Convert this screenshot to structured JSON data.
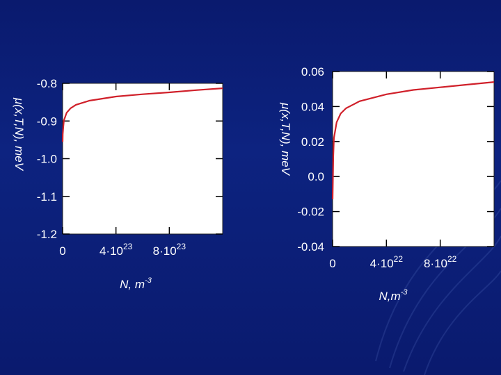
{
  "chart_data": [
    {
      "type": "line",
      "xlabel": "N, m",
      "xlabel_sup": "-3",
      "ylabel": "μ(x,T,N), meV",
      "ylim": [
        -1.2,
        -0.8
      ],
      "xlim": [
        0,
        1.2e+24
      ],
      "y_ticks": [
        {
          "value": -0.8,
          "label": "-0.8"
        },
        {
          "value": -0.9,
          "label": "-0.9"
        },
        {
          "value": -1.0,
          "label": "-1.0"
        },
        {
          "value": -1.1,
          "label": "-1.1"
        },
        {
          "value": -1.2,
          "label": "-1.2"
        }
      ],
      "x_ticks": [
        {
          "value": 0,
          "base": "0",
          "exp": ""
        },
        {
          "value": 4e+23,
          "base": "4·10",
          "exp": "23"
        },
        {
          "value": 8e+23,
          "base": "8·10",
          "exp": "23"
        }
      ],
      "series": [
        {
          "color": "#d0202a",
          "x": [
            0,
            1e+21,
            5e+21,
            1e+22,
            3e+22,
            6e+22,
            1e+23,
            2e+23,
            4e+23,
            6e+23,
            8e+23,
            1e+24,
            1.2e+24
          ],
          "y": [
            -0.955,
            -0.935,
            -0.915,
            -0.898,
            -0.878,
            -0.866,
            -0.857,
            -0.846,
            -0.835,
            -0.829,
            -0.824,
            -0.818,
            -0.813
          ]
        }
      ]
    },
    {
      "type": "line",
      "xlabel": "N,m",
      "xlabel_sup": "-3",
      "ylabel": "μ(x,T,N), meV",
      "ylim": [
        -0.04,
        0.06
      ],
      "xlim": [
        0,
        1.2e+23
      ],
      "y_ticks": [
        {
          "value": 0.06,
          "label": "0.06"
        },
        {
          "value": 0.04,
          "label": "0.04"
        },
        {
          "value": 0.02,
          "label": "0.02"
        },
        {
          "value": 0.0,
          "label": "0.0"
        },
        {
          "value": -0.02,
          "label": "-0.02"
        },
        {
          "value": -0.04,
          "label": "-0.04"
        }
      ],
      "x_ticks": [
        {
          "value": 0,
          "base": "0",
          "exp": ""
        },
        {
          "value": 4e+22,
          "base": "4·10",
          "exp": "22"
        },
        {
          "value": 8e+22,
          "base": "8·10",
          "exp": "22"
        }
      ],
      "series": [
        {
          "color": "#d0202a",
          "x": [
            0,
            5e+20,
            1e+21,
            3e+21,
            6e+21,
            1e+22,
            2e+22,
            4e+22,
            6e+22,
            8e+22,
            1e+23,
            1.2e+23
          ],
          "y": [
            -0.013,
            0.012,
            0.022,
            0.031,
            0.036,
            0.039,
            0.043,
            0.047,
            0.0495,
            0.051,
            0.0525,
            0.054
          ]
        }
      ]
    }
  ]
}
